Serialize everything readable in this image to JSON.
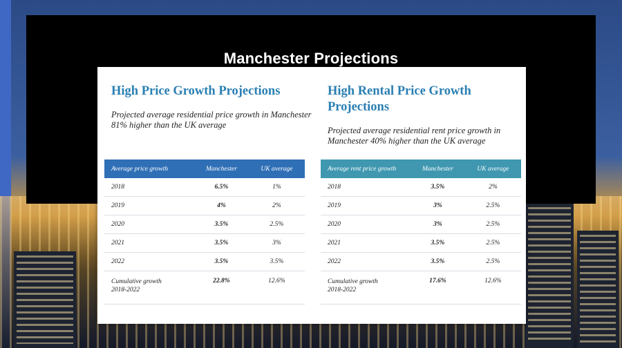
{
  "page": {
    "title": "Manchester Projections"
  },
  "price": {
    "heading": "High Price Growth Projections",
    "subtitle": "Projected average residential price growth in Manchester 81% higher than the UK average",
    "columns": [
      "Average price growth",
      "Manchester",
      "UK average"
    ],
    "rows": [
      {
        "year": "2018",
        "manchester": "6.5%",
        "uk": "1%"
      },
      {
        "year": "2019",
        "manchester": "4%",
        "uk": "2%"
      },
      {
        "year": "2020",
        "manchester": "3.5%",
        "uk": "2.5%"
      },
      {
        "year": "2021",
        "manchester": "3.5%",
        "uk": "3%"
      },
      {
        "year": "2022",
        "manchester": "3.5%",
        "uk": "3.5%"
      }
    ],
    "cumulative": {
      "label_line1": "Cumulative growth",
      "label_line2": "2018-2022",
      "manchester": "22.8%",
      "uk": "12.6%"
    }
  },
  "rent": {
    "heading": "High Rental Price Growth Projections",
    "subtitle": "Projected average residential rent price growth in Manchester 40% higher than the UK average",
    "columns": [
      "Average rent price growth",
      "Manchester",
      "UK average"
    ],
    "rows": [
      {
        "year": "2018",
        "manchester": "3.5%",
        "uk": "2%"
      },
      {
        "year": "2019",
        "manchester": "3%",
        "uk": "2.5%"
      },
      {
        "year": "2020",
        "manchester": "3%",
        "uk": "2.5%"
      },
      {
        "year": "2021",
        "manchester": "3.5%",
        "uk": "2.5%"
      },
      {
        "year": "2022",
        "manchester": "3.5%",
        "uk": "2.5%"
      }
    ],
    "cumulative": {
      "label_line1": "Cumulative growth",
      "label_line2": "2018-2022",
      "manchester": "17.6%",
      "uk": "12.6%"
    }
  },
  "colors": {
    "heading": "#2a7fb3",
    "price_header": "#2f6fb6",
    "rent_header": "#3f97b0"
  }
}
